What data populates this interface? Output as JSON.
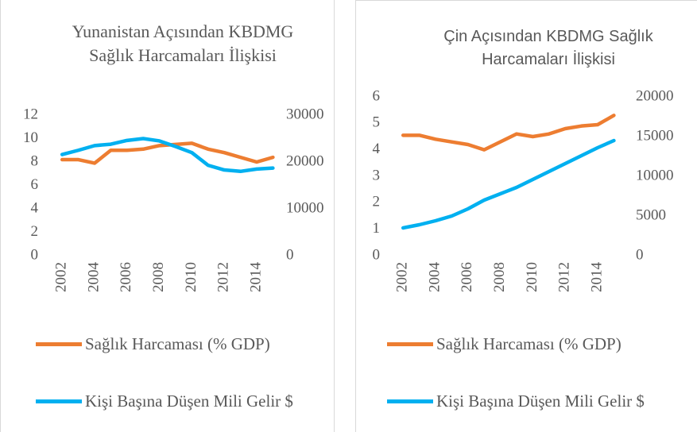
{
  "chart_data": [
    {
      "type": "line",
      "title": "Yunanistan Açısından KBDMG Sağlık Harcamaları İlişkisi",
      "categories": [
        "2002",
        null,
        "2004",
        null,
        "2006",
        null,
        "2008",
        null,
        "2010",
        null,
        "2012",
        null,
        "2014",
        null
      ],
      "series": [
        {
          "name": "Sağlık Harcaması (% GDP)",
          "color": "#ED7D31",
          "values": [
            8.2,
            8.2,
            7.9,
            9.0,
            9.0,
            9.1,
            9.4,
            9.5,
            9.6,
            9.1,
            8.8,
            8.4,
            8.0,
            8.4
          ]
        },
        {
          "name": "Kişi Başına Düşen Mili Gelir $",
          "color": "#00B0F0",
          "axis": "y2",
          "values": [
            21600,
            22500,
            23500,
            23800,
            24600,
            25000,
            24500,
            23300,
            22000,
            19300,
            18300,
            18000,
            18500,
            18700
          ]
        }
      ],
      "ylim": [
        0,
        12
      ],
      "yticks": [
        0,
        2,
        4,
        6,
        8,
        10,
        12
      ],
      "y2lim": [
        0,
        30000
      ],
      "y2ticks": [
        0,
        10000,
        20000,
        30000
      ]
    },
    {
      "type": "line",
      "title": "Çin Açısından KBDMG Sağlık Harcamaları İlişkisi",
      "categories": [
        "2002",
        null,
        "2004",
        null,
        "2006",
        null,
        "2008",
        null,
        "2010",
        null,
        "2012",
        null,
        "2014",
        null
      ],
      "series": [
        {
          "name": "Sağlık Harcaması (% GDP)",
          "color": "#ED7D31",
          "values": [
            4.55,
            4.55,
            4.4,
            4.3,
            4.2,
            4.0,
            4.3,
            4.6,
            4.5,
            4.6,
            4.8,
            4.9,
            4.95,
            5.3
          ]
        },
        {
          "name": "Kişi Başına Düşen Mili Gelir $",
          "color": "#00B0F0",
          "axis": "y2",
          "values": [
            3500,
            3900,
            4400,
            5000,
            5900,
            7000,
            7800,
            8600,
            9600,
            10600,
            11600,
            12600,
            13600,
            14500
          ]
        }
      ],
      "ylim": [
        0,
        6
      ],
      "yticks": [
        0,
        1,
        2,
        3,
        4,
        5,
        6
      ],
      "y2lim": [
        0,
        20000
      ],
      "y2ticks": [
        0,
        5000,
        10000,
        15000,
        20000
      ]
    }
  ]
}
